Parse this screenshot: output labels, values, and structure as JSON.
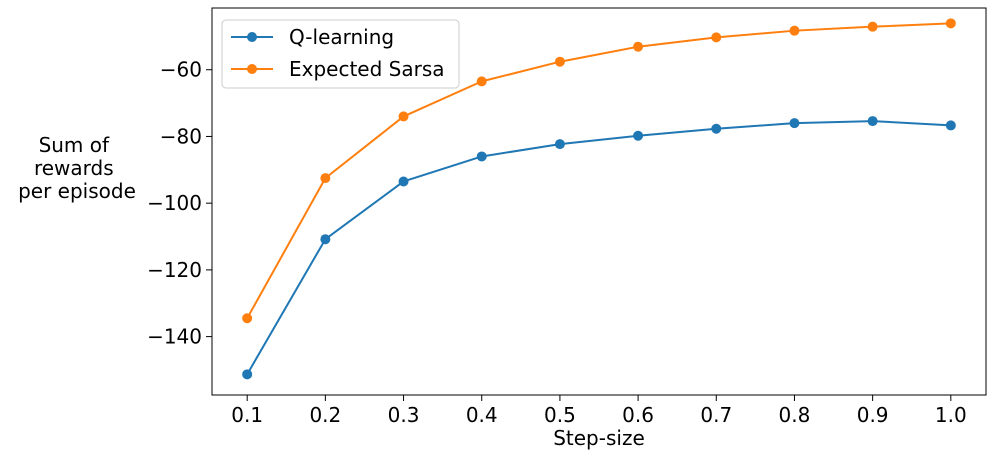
{
  "chart_data": {
    "type": "line",
    "title": "",
    "xlabel": "Step-size",
    "ylabel_lines": [
      "Sum of",
      "rewards",
      "per episode"
    ],
    "x": [
      0.1,
      0.2,
      0.3,
      0.4,
      0.5,
      0.6,
      0.7,
      0.8,
      0.9,
      1.0
    ],
    "x_tick_labels": [
      "0.1",
      "0.2",
      "0.3",
      "0.4",
      "0.5",
      "0.6",
      "0.7",
      "0.8",
      "0.9",
      "1.0"
    ],
    "y_ticks": [
      -140,
      -120,
      -100,
      -80,
      -60
    ],
    "y_tick_labels": [
      "−140",
      "−120",
      "−100",
      "−80",
      "−60"
    ],
    "xlim": [
      0.055,
      1.045
    ],
    "ylim": [
      -157.5,
      -41.5
    ],
    "grid": false,
    "legend_position": "top-left",
    "series": [
      {
        "name": "Q-learning",
        "color": "#1f77b4",
        "marker": "circle",
        "values": [
          -151.3,
          -110.8,
          -93.5,
          -86.0,
          -82.3,
          -79.8,
          -77.7,
          -76.0,
          -75.4,
          -76.7
        ]
      },
      {
        "name": "Expected Sarsa",
        "color": "#ff7f0e",
        "marker": "circle",
        "values": [
          -134.5,
          -92.5,
          -74.0,
          -63.5,
          -57.6,
          -53.1,
          -50.3,
          -48.3,
          -47.1,
          -46.1
        ]
      }
    ]
  }
}
